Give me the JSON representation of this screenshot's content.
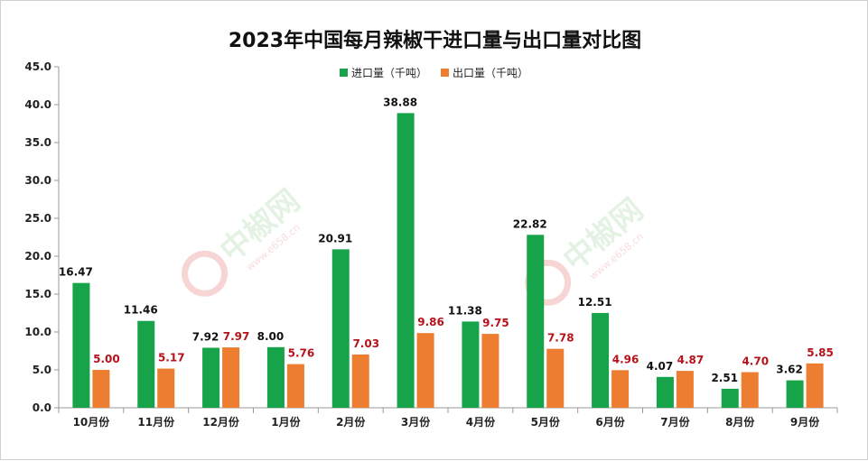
{
  "chart_data": {
    "type": "bar",
    "title": "2023年中国每月辣椒干进口量与出口量对比图",
    "categories": [
      "10月份",
      "11月份",
      "12月份",
      "1月份",
      "2月份",
      "3月份",
      "4月份",
      "5月份",
      "6月份",
      "7月份",
      "8月份",
      "9月份"
    ],
    "series": [
      {
        "name": "进口量（千吨）",
        "values": [
          16.47,
          11.46,
          7.92,
          8.0,
          20.91,
          38.88,
          11.38,
          22.82,
          12.51,
          4.07,
          2.51,
          3.62
        ],
        "labels": [
          "16.47",
          "11.46",
          "7.92",
          "8.00",
          "20.91",
          "38.88",
          "11.38",
          "22.82",
          "12.51",
          "4.07",
          "2.51",
          "3.62"
        ],
        "color": "#16a34a",
        "label_color": "#111111"
      },
      {
        "name": "出口量（千吨）",
        "values": [
          5.0,
          5.17,
          7.97,
          5.76,
          7.03,
          9.86,
          9.75,
          7.78,
          4.96,
          4.87,
          4.7,
          5.85
        ],
        "labels": [
          "5.00",
          "5.17",
          "7.97",
          "5.76",
          "7.03",
          "9.86",
          "9.75",
          "7.78",
          "4.96",
          "4.87",
          "4.70",
          "5.85"
        ],
        "color": "#ed7d31",
        "label_color": "#b5121b"
      }
    ],
    "yticks": [
      "0.0",
      "5.0",
      "10.0",
      "15.0",
      "20.0",
      "25.0",
      "30.0",
      "35.0",
      "40.0",
      "45.0"
    ],
    "ylim": [
      0,
      45
    ],
    "legend_position": "top-center",
    "grid": false
  },
  "watermark": {
    "text": "中椒网",
    "url": "www.e658.cn",
    "color": "#cfe9cf"
  }
}
